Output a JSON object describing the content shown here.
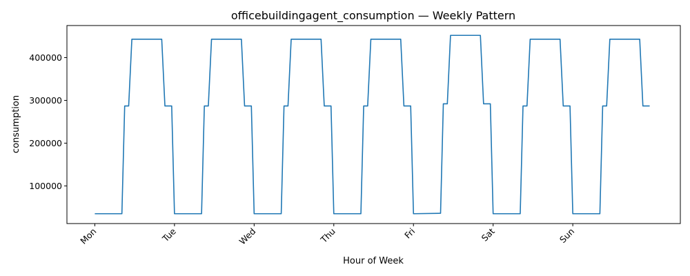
{
  "chart_data": {
    "type": "line",
    "title": "officebuildingagent_consumption — Weekly Pattern",
    "xlabel": "Hour of Week",
    "ylabel": "consumption",
    "xlim": [
      -7,
      147
    ],
    "ylim": [
      12000,
      475000
    ],
    "grid": false,
    "legend": "none",
    "x_ticks": [
      {
        "value": 0,
        "label": "Mon"
      },
      {
        "value": 20,
        "label": "Tue"
      },
      {
        "value": 40,
        "label": "Wed"
      },
      {
        "value": 60,
        "label": "Thu"
      },
      {
        "value": 80,
        "label": "Fri"
      },
      {
        "value": 100,
        "label": "Sat"
      },
      {
        "value": 120,
        "label": "Sun"
      }
    ],
    "y_ticks": [
      {
        "value": 100000,
        "label": "100000"
      },
      {
        "value": 200000,
        "label": "200000"
      },
      {
        "value": 300000,
        "label": "300000"
      },
      {
        "value": 400000,
        "label": "400000"
      }
    ],
    "series": [
      {
        "color": "#1f77b4",
        "x": [
          0,
          6.8,
          7.5,
          8.5,
          9.3,
          16.8,
          17.6,
          19.3,
          20.0,
          26.8,
          27.5,
          28.5,
          29.3,
          36.8,
          37.6,
          39.3,
          40.0,
          46.8,
          47.5,
          48.5,
          49.3,
          56.8,
          57.6,
          59.3,
          60.0,
          66.8,
          67.5,
          68.5,
          69.3,
          76.8,
          77.6,
          79.3,
          80.0,
          86.8,
          87.5,
          88.5,
          89.3,
          96.8,
          97.6,
          99.3,
          100.0,
          106.8,
          107.5,
          108.5,
          109.3,
          116.8,
          117.6,
          119.3,
          120.0,
          126.8,
          127.5,
          128.5,
          129.3,
          136.8,
          137.6,
          139.3
        ],
        "y": [
          35000,
          35000,
          287000,
          287000,
          443000,
          443000,
          287000,
          287000,
          35000,
          35000,
          287000,
          287000,
          443000,
          443000,
          287000,
          287000,
          35000,
          35000,
          287000,
          287000,
          443000,
          443000,
          287000,
          287000,
          35000,
          35000,
          287000,
          287000,
          443000,
          443000,
          287000,
          287000,
          35000,
          36000,
          292000,
          292000,
          452000,
          452000,
          292000,
          292000,
          35000,
          35000,
          287000,
          287000,
          443000,
          443000,
          287000,
          287000,
          35000,
          35000,
          287000,
          287000,
          443000,
          443000,
          287000,
          287000
        ]
      }
    ]
  }
}
